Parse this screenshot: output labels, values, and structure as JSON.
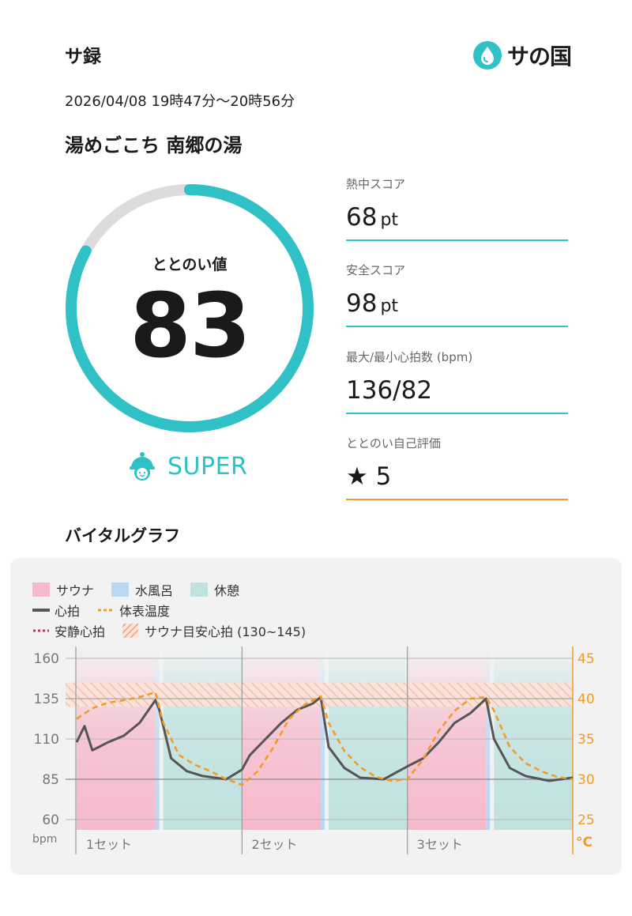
{
  "header": {
    "app_title": "サ録",
    "brand_name": "サの国",
    "datetime": "2026/04/08 19時47分〜20時56分",
    "facility": "湯めごこち 南郷の湯"
  },
  "score": {
    "label": "ととのい値",
    "value": "83",
    "value_fraction": 0.83,
    "rank": "SUPER",
    "rank_icon": "helmet-face-icon"
  },
  "stats": [
    {
      "label": "熱中スコア",
      "value": "68",
      "unit": "pt"
    },
    {
      "label": "安全スコア",
      "value": "98",
      "unit": "pt"
    },
    {
      "label": "最大/最小心拍数 (bpm)",
      "value": "136/82",
      "unit": ""
    },
    {
      "label": "ととのい自己評価",
      "value": "★ 5",
      "unit": ""
    }
  ],
  "vital": {
    "title": "バイタルグラフ",
    "legend": {
      "sauna": "サウナ",
      "cold_bath": "水風呂",
      "rest": "休憩",
      "heart_rate": "心拍",
      "body_temp": "体表温度",
      "resting_hr": "安静心拍",
      "target_hr": "サウナ目安心拍 (130~145)"
    }
  },
  "colors": {
    "accent": "#2fc1c6",
    "orange": "#f59a23",
    "sauna": "#f6b9cb",
    "cold_bath": "#b9d8f4",
    "rest": "#bfe2e0",
    "heart_line": "#555555",
    "resting_line": "#b0405a"
  },
  "chart_data": {
    "type": "line",
    "y_left": {
      "label": "bpm",
      "ticks": [
        "160",
        "135",
        "110",
        "85",
        "60"
      ],
      "range": [
        60,
        160
      ]
    },
    "y_right": {
      "label": "°C",
      "ticks": [
        "45",
        "40",
        "35",
        "30",
        "25"
      ],
      "range": [
        25,
        45
      ]
    },
    "x_labels": [
      "1セット",
      "2セット",
      "3セット"
    ],
    "resting_hr": 85,
    "target_hr_range": [
      130,
      145
    ],
    "phases": [
      {
        "type": "sauna",
        "start": 0,
        "end": 10
      },
      {
        "type": "cold_bath",
        "start": 10,
        "end": 10.5
      },
      {
        "type": "rest",
        "start": 11,
        "end": 21
      },
      {
        "type": "sauna",
        "start": 21,
        "end": 31
      },
      {
        "type": "cold_bath",
        "start": 31,
        "end": 31.5
      },
      {
        "type": "rest",
        "start": 32,
        "end": 42
      },
      {
        "type": "sauna",
        "start": 42,
        "end": 52
      },
      {
        "type": "cold_bath",
        "start": 52,
        "end": 52.5
      },
      {
        "type": "rest",
        "start": 53,
        "end": 63
      }
    ],
    "series": [
      {
        "name": "心拍",
        "axis": "left",
        "x": [
          0,
          1,
          2,
          4,
          6,
          8,
          10,
          10.5,
          12,
          14,
          16,
          19,
          21,
          22,
          24,
          26,
          28,
          30,
          31,
          32,
          34,
          36,
          39,
          42,
          44,
          46,
          48,
          50,
          52,
          53,
          55,
          57,
          60,
          63
        ],
        "values": [
          108,
          118,
          103,
          108,
          112,
          120,
          134,
          128,
          98,
          90,
          87,
          85,
          91,
          100,
          110,
          120,
          128,
          132,
          136,
          105,
          92,
          86,
          85,
          93,
          98,
          108,
          120,
          126,
          135,
          110,
          92,
          87,
          84,
          86
        ]
      },
      {
        "name": "体表温度",
        "axis": "right",
        "x": [
          0,
          2,
          4,
          6,
          8,
          10,
          11,
          13,
          15,
          17,
          19,
          21,
          23,
          25,
          27,
          29,
          31,
          32,
          34,
          36,
          38,
          40,
          42,
          44,
          46,
          48,
          50,
          52,
          53,
          55,
          57,
          59,
          61,
          63
        ],
        "values": [
          37.5,
          38.8,
          39.5,
          39.8,
          40.2,
          40.8,
          37,
          33,
          31.8,
          31,
          30,
          29.3,
          31,
          34,
          37.5,
          39.3,
          40.3,
          37,
          33.5,
          31.5,
          30.3,
          29.8,
          30,
          32.5,
          36,
          38.5,
          40,
          40.2,
          38.5,
          34,
          32,
          31,
          30.3,
          30
        ]
      }
    ]
  }
}
